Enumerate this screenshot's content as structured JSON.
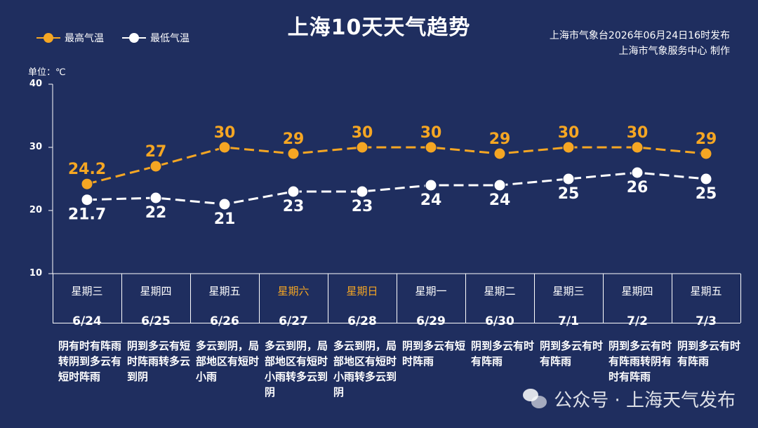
{
  "title": "上海10天天气趋势",
  "legend": {
    "high": "最高气温",
    "low": "最低气温"
  },
  "publisher": {
    "line1": "上海市气象台2026年06月24日16时发布",
    "line2": "上海市气象服务中心 制作"
  },
  "unit_label": "单位：℃",
  "colors": {
    "high": "#f5a623",
    "low": "#ffffff",
    "background": "#1f2e5f",
    "weekend": "#f5a623"
  },
  "watermark": "公众号 · 上海天气发布",
  "chart_data": {
    "type": "line",
    "title": "上海10天天气趋势",
    "ylabel": "单位：℃",
    "ylim": [
      10,
      40
    ],
    "yticks": [
      "10",
      "20",
      "30",
      "40"
    ],
    "categories": [
      "6/24",
      "6/25",
      "6/26",
      "6/27",
      "6/28",
      "6/29",
      "6/30",
      "7/1",
      "7/2",
      "7/3"
    ],
    "series": [
      {
        "name": "最高气温",
        "values": [
          24.2,
          27,
          30,
          29,
          30,
          30,
          29,
          30,
          30,
          29
        ],
        "labels": [
          "24.2",
          "27",
          "30",
          "29",
          "30",
          "30",
          "29",
          "30",
          "30",
          "29"
        ]
      },
      {
        "name": "最低气温",
        "values": [
          21.7,
          22,
          21,
          23,
          23,
          24,
          24,
          25,
          26,
          25
        ],
        "labels": [
          "21.7",
          "22",
          "21",
          "23",
          "23",
          "24",
          "24",
          "25",
          "26",
          "25"
        ]
      }
    ]
  },
  "days": [
    {
      "weekday": "星期三",
      "date": "6/24",
      "weekend": false,
      "desc": "阴有时有阵雨转阴到多云有短时阵雨"
    },
    {
      "weekday": "星期四",
      "date": "6/25",
      "weekend": false,
      "desc": "阴到多云有短时阵雨转多云到阴"
    },
    {
      "weekday": "星期五",
      "date": "6/26",
      "weekend": false,
      "desc": "多云到阴，局部地区有短时小雨"
    },
    {
      "weekday": "星期六",
      "date": "6/27",
      "weekend": true,
      "desc": "多云到阴，局部地区有短时小雨转多云到阴"
    },
    {
      "weekday": "星期日",
      "date": "6/28",
      "weekend": true,
      "desc": "多云到阴，局部地区有短时小雨转多云到阴"
    },
    {
      "weekday": "星期一",
      "date": "6/29",
      "weekend": false,
      "desc": "阴到多云有短时阵雨"
    },
    {
      "weekday": "星期二",
      "date": "6/30",
      "weekend": false,
      "desc": "阴到多云有时有阵雨"
    },
    {
      "weekday": "星期三",
      "date": "7/1",
      "weekend": false,
      "desc": "阴到多云有时有阵雨"
    },
    {
      "weekday": "星期四",
      "date": "7/2",
      "weekend": false,
      "desc": "阴到多云有时有阵雨转阴有时有阵雨"
    },
    {
      "weekday": "星期五",
      "date": "7/3",
      "weekend": false,
      "desc": "阴到多云有时有阵雨"
    }
  ]
}
